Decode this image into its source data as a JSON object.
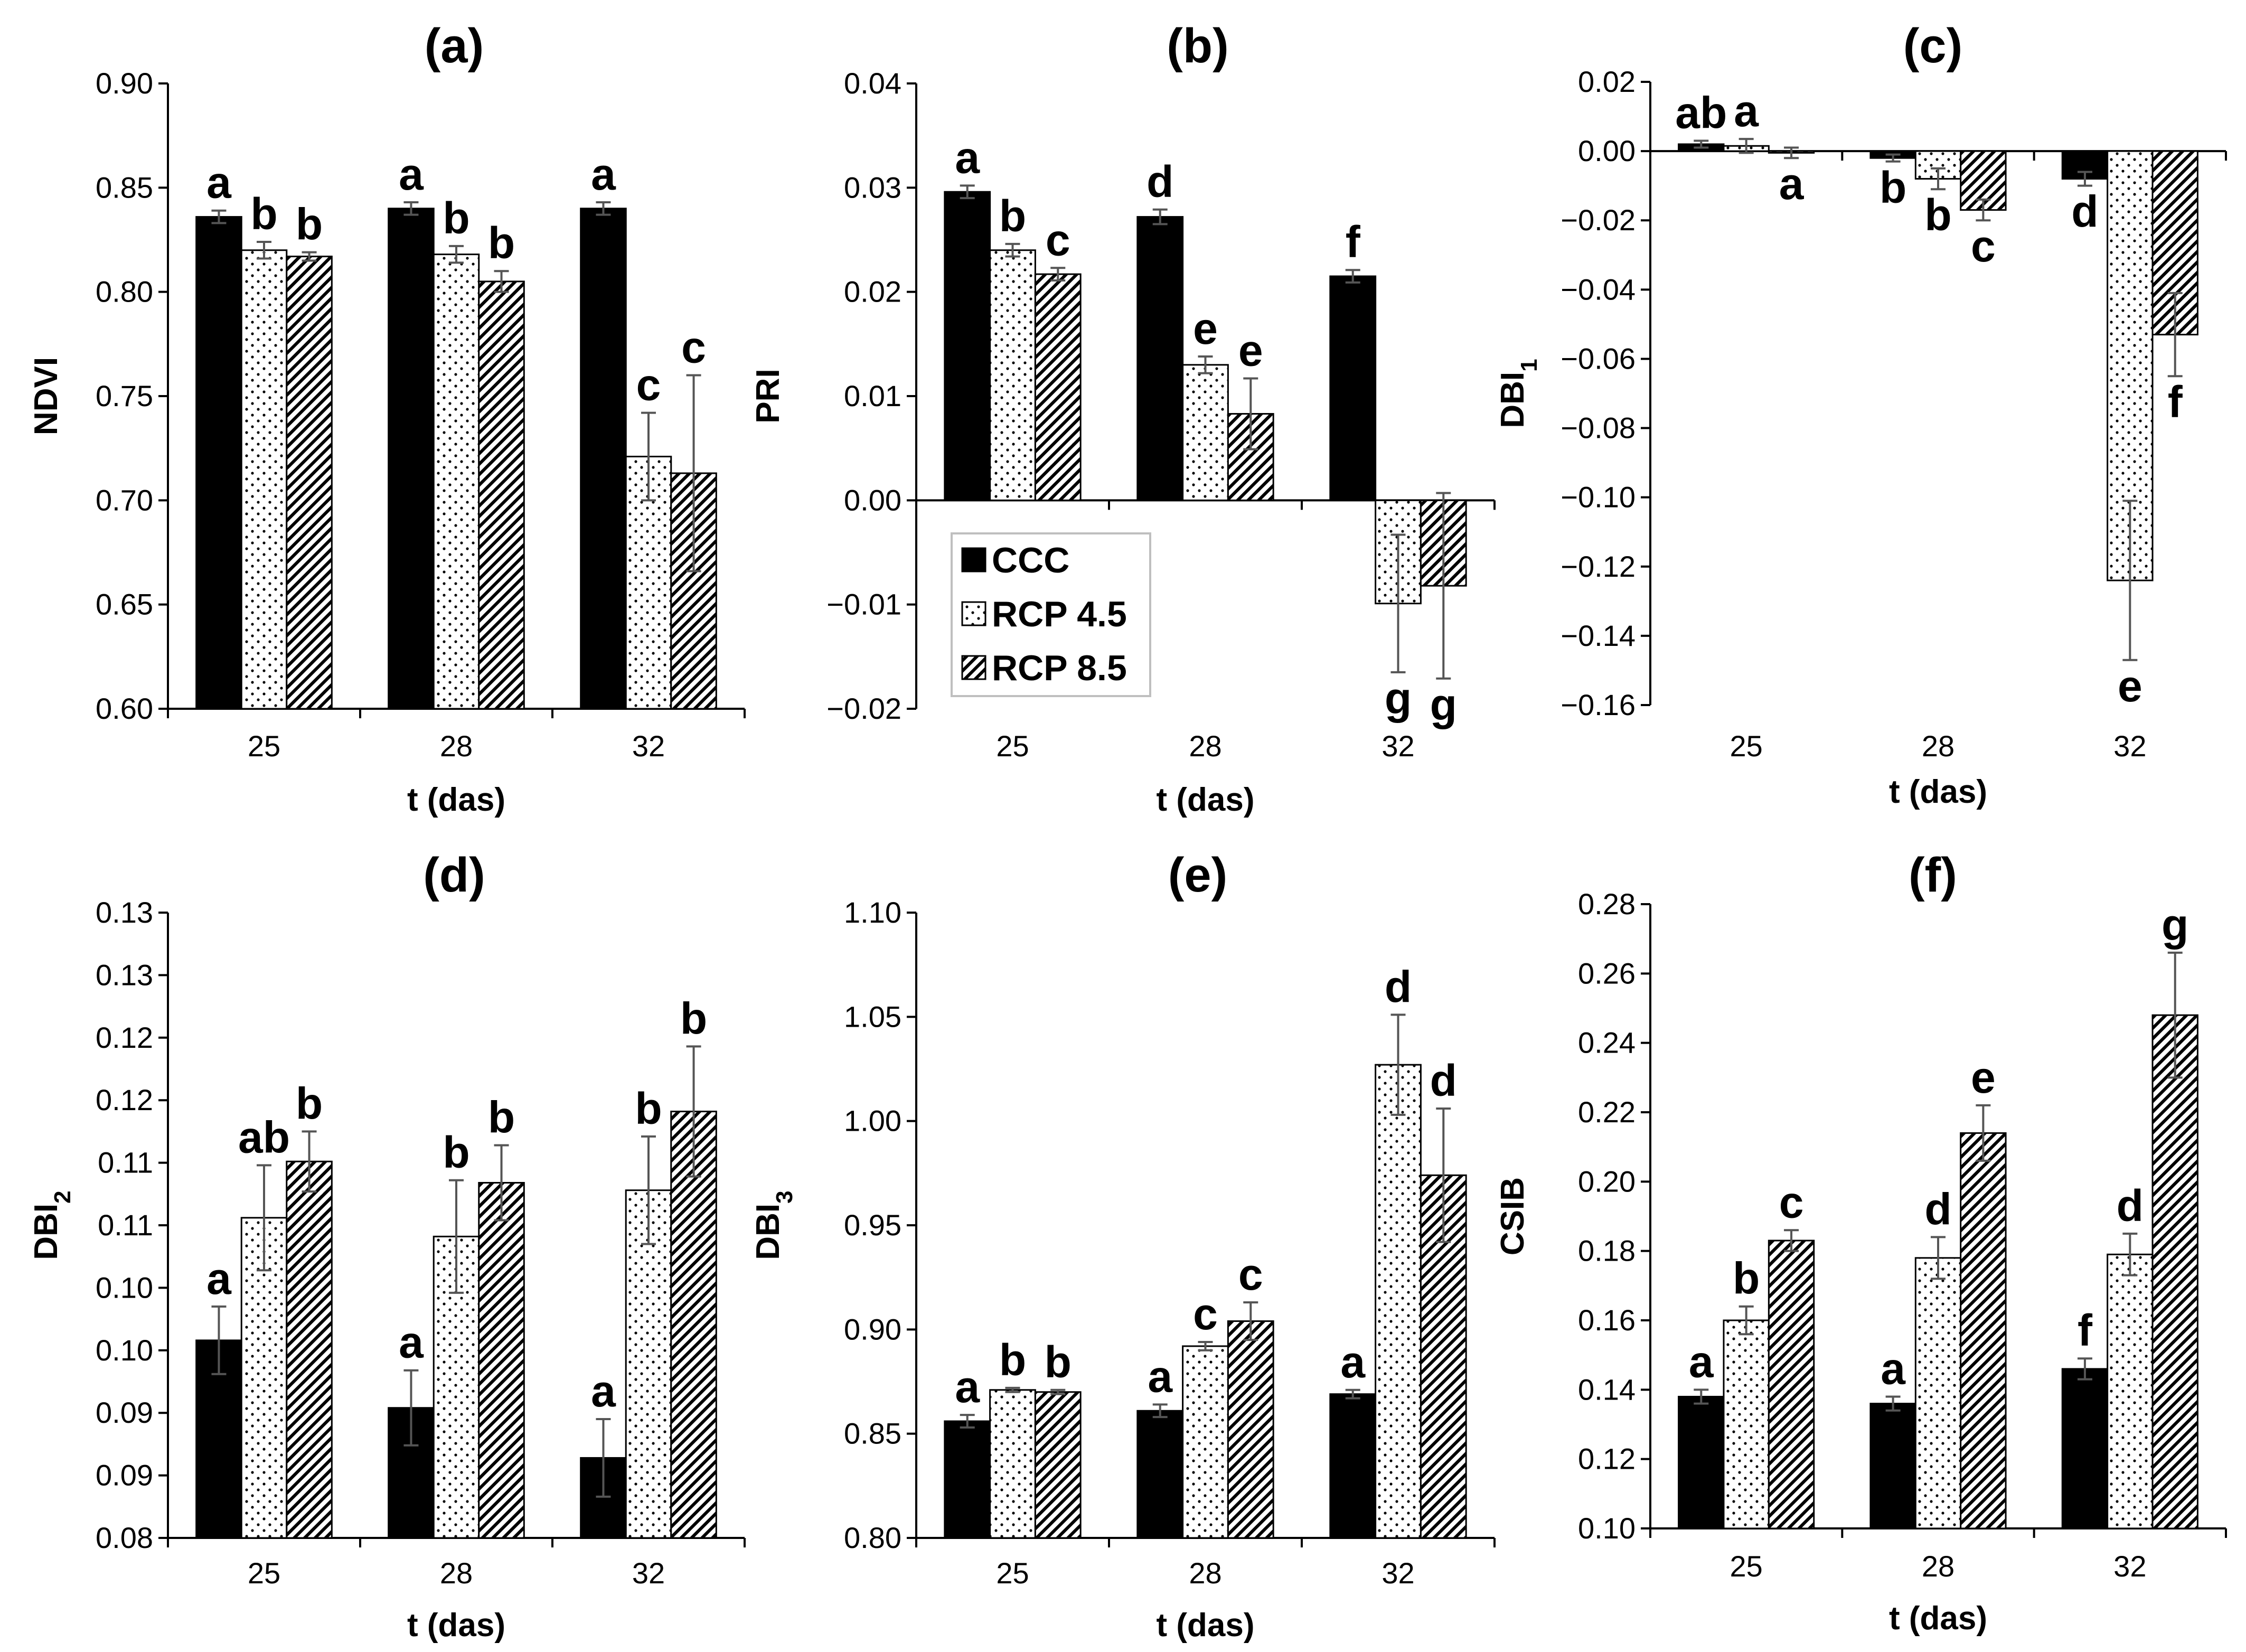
{
  "legend": {
    "items": [
      {
        "label": "CCC",
        "pattern": "solid"
      },
      {
        "label": "RCP 4.5",
        "pattern": "dots"
      },
      {
        "label": "RCP 8.5",
        "pattern": "hatch"
      }
    ]
  },
  "colors": {
    "ccc": "#000000",
    "border": "#000000",
    "axis": "#000000",
    "errorbar": "#555555",
    "legend_border": "#bfbfbf"
  },
  "chart_data": [
    {
      "type": "bar",
      "title": "(a)",
      "xlabel": "t (das)",
      "ylabel": "NDVI",
      "categories": [
        "25",
        "28",
        "32"
      ],
      "ylim": [
        0.6,
        0.9
      ],
      "yticks": [
        0.6,
        0.65,
        0.7,
        0.75,
        0.8,
        0.85,
        0.9
      ],
      "ytick_labels": [
        "0.60",
        "0.65",
        "0.70",
        "0.75",
        "0.80",
        "0.85",
        "0.90"
      ],
      "series": [
        {
          "name": "CCC",
          "values": [
            0.836,
            0.84,
            0.84
          ],
          "errors": [
            0.003,
            0.003,
            0.003
          ],
          "letters": [
            "a",
            "a",
            "a"
          ]
        },
        {
          "name": "RCP 4.5",
          "values": [
            0.82,
            0.818,
            0.721
          ],
          "errors": [
            0.004,
            0.004,
            0.021
          ],
          "letters": [
            "b",
            "b",
            "c"
          ]
        },
        {
          "name": "RCP 8.5",
          "values": [
            0.817,
            0.805,
            0.713
          ],
          "errors": [
            0.002,
            0.005,
            0.047
          ],
          "letters": [
            "b",
            "b",
            "c"
          ]
        }
      ]
    },
    {
      "type": "bar",
      "title": "(b)",
      "xlabel": "t (das)",
      "ylabel": "PRI",
      "categories": [
        "25",
        "28",
        "32"
      ],
      "ylim": [
        -0.02,
        0.04
      ],
      "yticks": [
        -0.02,
        -0.01,
        0.0,
        0.01,
        0.02,
        0.03,
        0.04
      ],
      "ytick_labels": [
        "−0.02",
        "−0.01",
        "0.00",
        "0.01",
        "0.02",
        "0.03",
        "0.04"
      ],
      "series": [
        {
          "name": "CCC",
          "values": [
            0.0296,
            0.0272,
            0.0215
          ],
          "errors": [
            0.0006,
            0.0007,
            0.0006
          ],
          "letters": [
            "a",
            "d",
            "f"
          ]
        },
        {
          "name": "RCP 4.5",
          "values": [
            0.024,
            0.013,
            -0.0099
          ],
          "errors": [
            0.0006,
            0.0008,
            0.0066
          ],
          "letters": [
            "b",
            "e",
            "g"
          ]
        },
        {
          "name": "RCP 8.5",
          "values": [
            0.0217,
            0.0083,
            -0.0082
          ],
          "errors": [
            0.0006,
            0.0034,
            0.0089
          ],
          "letters": [
            "c",
            "e",
            "g"
          ]
        }
      ]
    },
    {
      "type": "bar",
      "title": "(c)",
      "xlabel": "t (das)",
      "ylabel": "DBI",
      "ylabel_sub": "1",
      "categories": [
        "25",
        "28",
        "32"
      ],
      "ylim": [
        -0.16,
        0.02
      ],
      "yticks": [
        -0.16,
        -0.14,
        -0.12,
        -0.1,
        -0.08,
        -0.06,
        -0.04,
        -0.02,
        0.0,
        0.02
      ],
      "ytick_labels": [
        "−0.16",
        "−0.14",
        "−0.12",
        "−0.10",
        "−0.08",
        "−0.06",
        "−0.04",
        "−0.02",
        "0.00",
        "0.02"
      ],
      "series": [
        {
          "name": "CCC",
          "values": [
            0.002,
            -0.002,
            -0.008
          ],
          "errors": [
            0.001,
            0.001,
            0.002
          ],
          "letters": [
            "ab",
            "b",
            "d"
          ]
        },
        {
          "name": "RCP 4.5",
          "values": [
            0.0015,
            -0.008,
            -0.124
          ],
          "errors": [
            0.002,
            0.003,
            0.023
          ],
          "letters": [
            "a",
            "b",
            "e"
          ]
        },
        {
          "name": "RCP 8.5",
          "values": [
            -0.0005,
            -0.017,
            -0.053
          ],
          "errors": [
            0.0015,
            0.003,
            0.012
          ],
          "letters": [
            "a",
            "c",
            "f"
          ]
        }
      ]
    },
    {
      "type": "bar",
      "title": "(d)",
      "xlabel": "t (das)",
      "ylabel": "DBI",
      "ylabel_sub": "2",
      "categories": [
        "25",
        "28",
        "32"
      ],
      "ylim": [
        0.08,
        0.13
      ],
      "yticks": [
        0.08,
        0.085,
        0.09,
        0.095,
        0.1,
        0.105,
        0.11,
        0.115,
        0.12,
        0.125,
        0.13
      ],
      "ytick_labels": [
        "0.08",
        "0.09",
        "0.09",
        "0.10",
        "0.10",
        "0.11",
        "0.11",
        "0.12",
        "0.12",
        "0.13",
        "0.13"
      ],
      "series": [
        {
          "name": "CCC",
          "values": [
            0.0958,
            0.0904,
            0.0864
          ],
          "errors": [
            0.0027,
            0.003,
            0.0031
          ],
          "letters": [
            "a",
            "a",
            "a"
          ]
        },
        {
          "name": "RCP 4.5",
          "values": [
            0.1056,
            0.1041,
            0.1078
          ],
          "errors": [
            0.0042,
            0.0045,
            0.0043
          ],
          "letters": [
            "ab",
            "b",
            "b"
          ]
        },
        {
          "name": "RCP 8.5",
          "values": [
            0.1101,
            0.1084,
            0.1141
          ],
          "errors": [
            0.0024,
            0.003,
            0.0052
          ],
          "letters": [
            "b",
            "b",
            "b"
          ]
        }
      ]
    },
    {
      "type": "bar",
      "title": "(e)",
      "xlabel": "t (das)",
      "ylabel": "DBI",
      "ylabel_sub": "3",
      "categories": [
        "25",
        "28",
        "32"
      ],
      "ylim": [
        0.8,
        1.1
      ],
      "yticks": [
        0.8,
        0.85,
        0.9,
        0.95,
        1.0,
        1.05,
        1.1
      ],
      "ytick_labels": [
        "0.80",
        "0.85",
        "0.90",
        "0.95",
        "1.00",
        "1.05",
        "1.10"
      ],
      "series": [
        {
          "name": "CCC",
          "values": [
            0.856,
            0.861,
            0.869
          ],
          "errors": [
            0.003,
            0.003,
            0.002
          ],
          "letters": [
            "a",
            "a",
            "a"
          ]
        },
        {
          "name": "RCP 4.5",
          "values": [
            0.871,
            0.892,
            1.027
          ],
          "errors": [
            0.001,
            0.002,
            0.024
          ],
          "letters": [
            "b",
            "c",
            "d"
          ]
        },
        {
          "name": "RCP 8.5",
          "values": [
            0.87,
            0.904,
            0.974
          ],
          "errors": [
            0.001,
            0.009,
            0.032
          ],
          "letters": [
            "b",
            "c",
            "d"
          ]
        }
      ]
    },
    {
      "type": "bar",
      "title": "(f)",
      "xlabel": "t (das)",
      "ylabel": "CSIB",
      "categories": [
        "25",
        "28",
        "32"
      ],
      "ylim": [
        0.1,
        0.28
      ],
      "yticks": [
        0.1,
        0.12,
        0.14,
        0.16,
        0.18,
        0.2,
        0.22,
        0.24,
        0.26,
        0.28
      ],
      "ytick_labels": [
        "0.10",
        "0.12",
        "0.14",
        "0.16",
        "0.18",
        "0.20",
        "0.22",
        "0.24",
        "0.26",
        "0.28"
      ],
      "series": [
        {
          "name": "CCC",
          "values": [
            0.138,
            0.136,
            0.146
          ],
          "errors": [
            0.002,
            0.002,
            0.003
          ],
          "letters": [
            "a",
            "a",
            "f"
          ]
        },
        {
          "name": "RCP 4.5",
          "values": [
            0.16,
            0.178,
            0.179
          ],
          "errors": [
            0.004,
            0.006,
            0.006
          ],
          "letters": [
            "b",
            "d",
            "d"
          ]
        },
        {
          "name": "RCP 8.5",
          "values": [
            0.183,
            0.214,
            0.248
          ],
          "errors": [
            0.003,
            0.008,
            0.018
          ],
          "letters": [
            "c",
            "e",
            "g"
          ]
        }
      ]
    }
  ]
}
